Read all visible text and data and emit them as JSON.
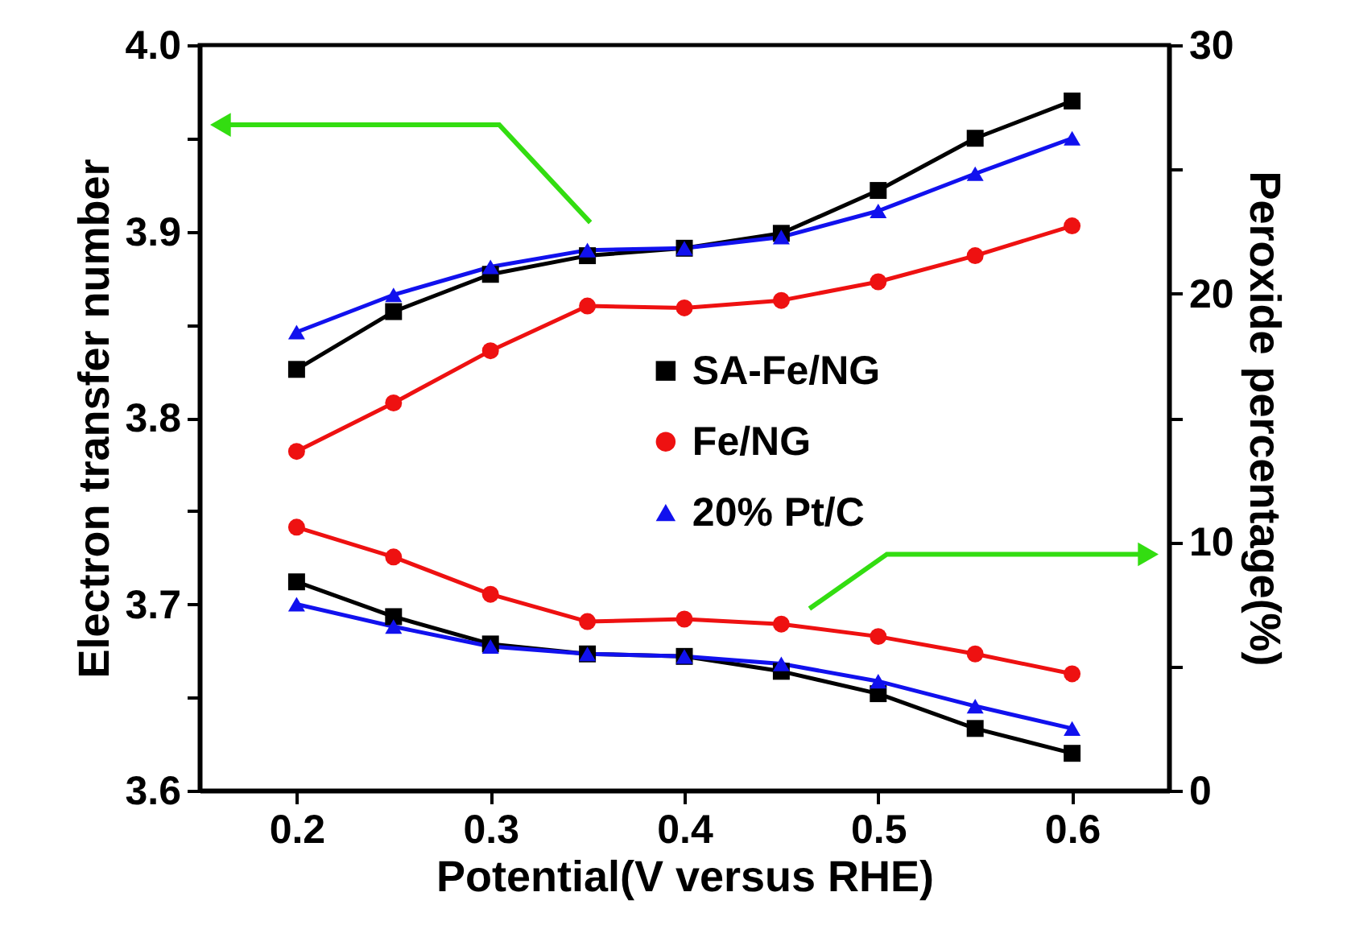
{
  "chart_data": {
    "type": "line",
    "xlabel": "Potential(V versus RHE)",
    "ylabel": "Electron transfer number",
    "y2label": "Peroxide percentage(%)",
    "x": [
      0.2,
      0.25,
      0.3,
      0.35,
      0.4,
      0.45,
      0.5,
      0.55,
      0.6
    ],
    "series": [
      {
        "name": "SA-Fe/NG",
        "color": "#000000",
        "marker": "square",
        "values": [
          3.826,
          3.857,
          3.877,
          3.887,
          3.891,
          3.899,
          3.922,
          3.95,
          3.97
        ]
      },
      {
        "name": "Fe/NG",
        "color": "#ee1111",
        "marker": "circle",
        "values": [
          3.782,
          3.808,
          3.836,
          3.86,
          3.859,
          3.863,
          3.873,
          3.887,
          3.903
        ]
      },
      {
        "name": "20% Pt/C",
        "color": "#1111ee",
        "marker": "triangle",
        "values": [
          3.846,
          3.866,
          3.881,
          3.89,
          3.891,
          3.897,
          3.911,
          3.931,
          3.95
        ]
      },
      {
        "color": "#000000",
        "marker": "square",
        "axis": "y2",
        "values": [
          8.4,
          7.0,
          5.9,
          5.5,
          5.4,
          4.8,
          3.9,
          2.5,
          1.5
        ]
      },
      {
        "color": "#ee1111",
        "marker": "circle",
        "axis": "y2",
        "values": [
          10.6,
          9.4,
          7.9,
          6.8,
          6.9,
          6.7,
          6.2,
          5.5,
          4.7
        ]
      },
      {
        "color": "#1111ee",
        "marker": "triangle",
        "axis": "y2",
        "values": [
          7.5,
          6.6,
          5.8,
          5.5,
          5.4,
          5.1,
          4.4,
          3.4,
          2.5
        ]
      }
    ],
    "xlim": [
      0.15,
      0.65
    ],
    "xticks": [
      0.2,
      0.3,
      0.4,
      0.5,
      0.6
    ],
    "ylim": [
      3.6,
      4.0
    ],
    "yticks": [
      3.6,
      {
        "value": 3.65,
        "label": null
      },
      3.7,
      {
        "value": 3.75,
        "label": null
      },
      3.8,
      {
        "value": 3.85,
        "label": null
      },
      3.9,
      {
        "value": 3.95,
        "label": null
      },
      {
        "value": 4.0,
        "label": "4.0"
      }
    ],
    "y2lim": [
      0,
      30
    ],
    "y2ticks": [
      0,
      {
        "value": 5,
        "label": null
      },
      10,
      {
        "value": 15,
        "label": null
      },
      20,
      {
        "value": 25,
        "label": null
      },
      30
    ],
    "grid": false,
    "legend": "right",
    "line_style": "solid"
  }
}
